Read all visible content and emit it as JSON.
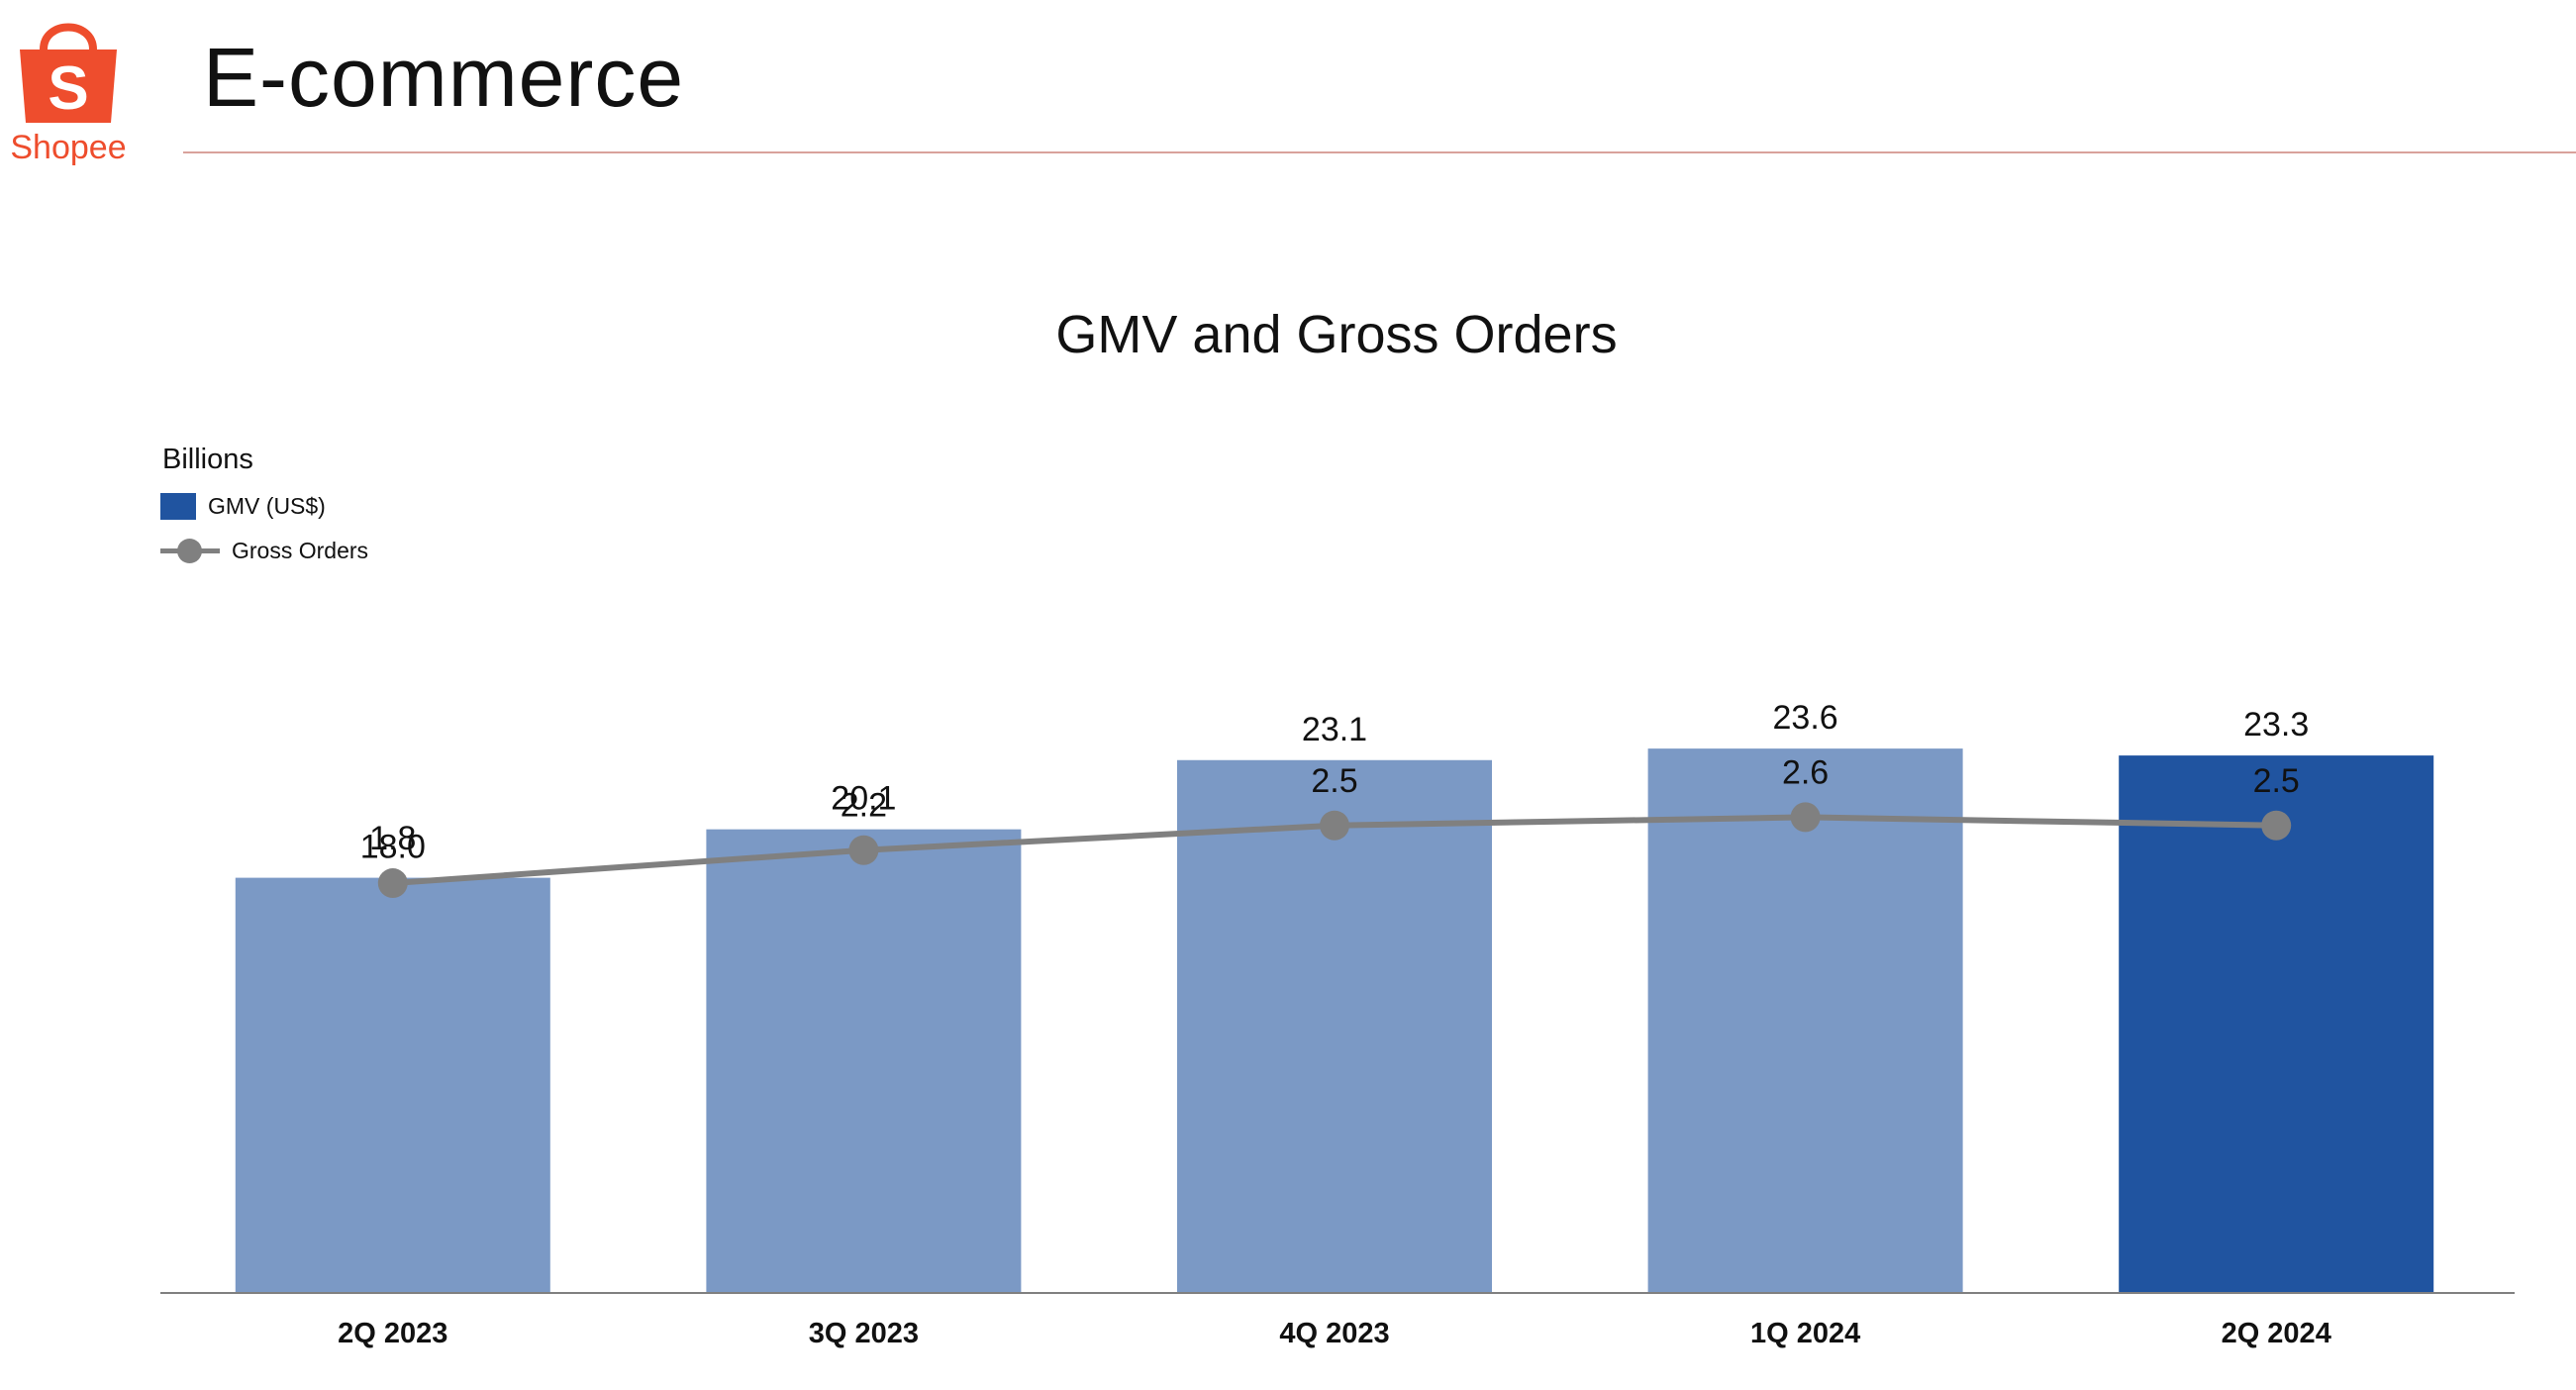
{
  "header": {
    "title": "E-commerce",
    "logo_text": "Shopee",
    "logo_icon": "shopping-bag-icon",
    "brand_color": "#ee4d2d",
    "rule_color": "#d9a29b"
  },
  "chart_data": {
    "type": "bar",
    "title": "GMV and Gross Orders",
    "units_label": "Billions",
    "categories": [
      "2Q 2023",
      "3Q 2023",
      "4Q 2023",
      "1Q 2024",
      "2Q 2024"
    ],
    "series": [
      {
        "name": "GMV (US$)",
        "type": "bar",
        "values": [
          18.0,
          20.1,
          23.1,
          23.6,
          23.3
        ],
        "labels": [
          "18.0",
          "20.1",
          "23.1",
          "23.6",
          "23.3"
        ],
        "color": "#7b99c5",
        "highlight_color": "#2054a0",
        "highlight_index": 4
      },
      {
        "name": "Gross Orders",
        "type": "line",
        "values": [
          1.8,
          2.2,
          2.5,
          2.6,
          2.5
        ],
        "labels": [
          "1.8",
          "2.2",
          "2.5",
          "2.6",
          "2.5"
        ],
        "color": "#808080"
      }
    ],
    "legend_position": "top-left",
    "grid": false
  }
}
